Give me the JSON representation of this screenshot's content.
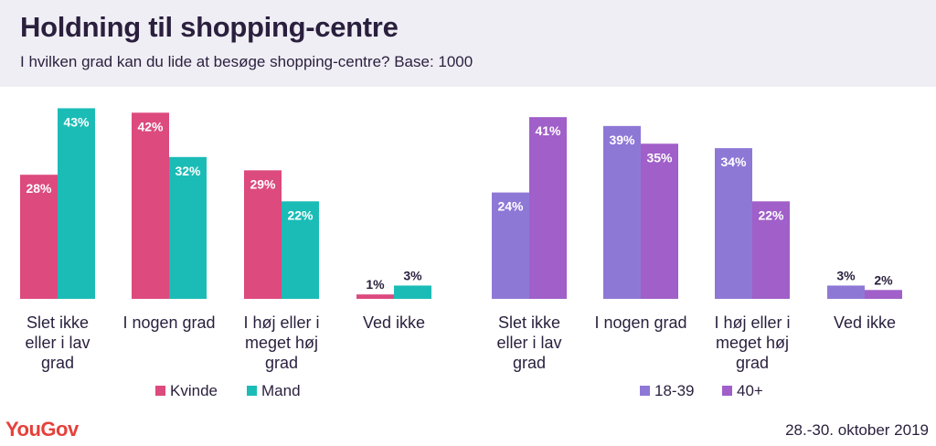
{
  "header": {
    "title": "Holdning til shopping-centre",
    "subtitle": "I hvilken grad kan du lide at besøge shopping-centre? Base: 1000"
  },
  "footer": {
    "logo": "YouGov",
    "date": "28.-30. oktober 2019"
  },
  "chart_data": [
    {
      "type": "bar",
      "categories": [
        [
          "Slet ikke",
          "eller i lav",
          "grad"
        ],
        [
          "I nogen grad"
        ],
        [
          "I høj eller i",
          "meget høj",
          "grad"
        ],
        [
          "Ved ikke"
        ]
      ],
      "series": [
        {
          "name": "Kvinde",
          "values": [
            28,
            42,
            29,
            1
          ],
          "labels": [
            "28%",
            "42%",
            "29%",
            "1%"
          ],
          "color": "#dc4a7e"
        },
        {
          "name": "Mand",
          "values": [
            43,
            32,
            22,
            3
          ],
          "labels": [
            "43%",
            "32%",
            "22%",
            "3%"
          ],
          "color": "#1bbcb6"
        }
      ],
      "ylim": [
        0,
        43
      ],
      "legend": "bottom",
      "grid": false
    },
    {
      "type": "bar",
      "categories": [
        [
          "Slet ikke",
          "eller i lav",
          "grad"
        ],
        [
          "I nogen grad"
        ],
        [
          "I høj eller i",
          "meget høj",
          "grad"
        ],
        [
          "Ved ikke"
        ]
      ],
      "series": [
        {
          "name": "18-39",
          "values": [
            24,
            39,
            34,
            3
          ],
          "labels": [
            "24%",
            "39%",
            "34%",
            "3%"
          ],
          "color": "#8e78d6"
        },
        {
          "name": "40+",
          "values": [
            41,
            35,
            22,
            2
          ],
          "labels": [
            "41%",
            "35%",
            "22%",
            "2%"
          ],
          "color": "#a05fc9"
        }
      ],
      "ylim": [
        0,
        43
      ],
      "legend": "bottom",
      "grid": false
    }
  ]
}
